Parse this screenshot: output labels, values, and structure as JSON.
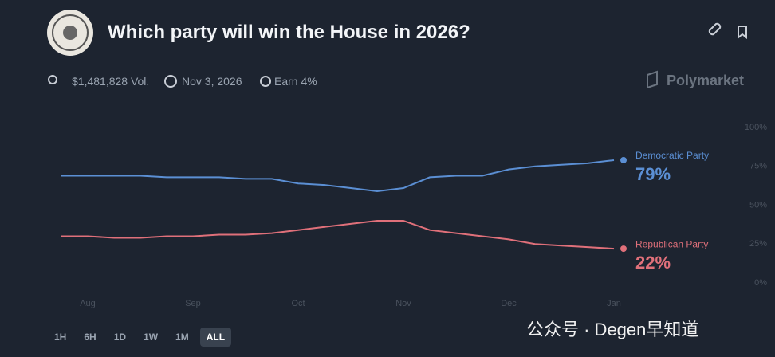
{
  "header": {
    "title": "Which party will win the House in 2026?",
    "volume": "$1,481,828 Vol.",
    "date": "Nov 3, 2026",
    "earn": "Earn 4%",
    "brand": "Polymarket"
  },
  "chart_data": {
    "type": "line",
    "categories": [
      null,
      "Aug",
      null,
      null,
      null,
      "Sep",
      null,
      null,
      null,
      "Oct",
      null,
      null,
      null,
      "Nov",
      null,
      null,
      null,
      "Dec",
      null,
      null,
      null,
      "Jan"
    ],
    "series": [
      {
        "name": "Democratic Party",
        "color": "#5b8fd4",
        "values": [
          69,
          69,
          69,
          69,
          68,
          68,
          68,
          67,
          67,
          64,
          63,
          61,
          59,
          61,
          68,
          69,
          69,
          73,
          75,
          76,
          77,
          79
        ],
        "value_labels": [
          null,
          null,
          null,
          null,
          null,
          null,
          null,
          null,
          null,
          null,
          null,
          null,
          null,
          null,
          null,
          null,
          null,
          null,
          null,
          null,
          null,
          "79%"
        ]
      },
      {
        "name": "Republican Party",
        "color": "#e0707a",
        "values": [
          30,
          30,
          29,
          29,
          30,
          30,
          31,
          31,
          32,
          34,
          36,
          38,
          40,
          40,
          34,
          32,
          30,
          28,
          25,
          24,
          23,
          22
        ],
        "value_labels": [
          null,
          null,
          null,
          null,
          null,
          null,
          null,
          null,
          null,
          null,
          null,
          null,
          null,
          null,
          null,
          null,
          null,
          null,
          null,
          null,
          null,
          "22%"
        ]
      }
    ],
    "ylim": [
      0,
      100
    ],
    "yticks": [
      {
        "value": 0,
        "label": "0%"
      },
      {
        "value": 25,
        "label": "25%"
      },
      {
        "value": 50,
        "label": "50%"
      },
      {
        "value": 75,
        "label": "75%"
      },
      {
        "value": 100,
        "label": "100%"
      }
    ]
  },
  "controls": {
    "ranges": [
      "1H",
      "6H",
      "1D",
      "1W",
      "1M",
      "ALL"
    ]
  },
  "watermark": "公众号 · Degen早知道"
}
